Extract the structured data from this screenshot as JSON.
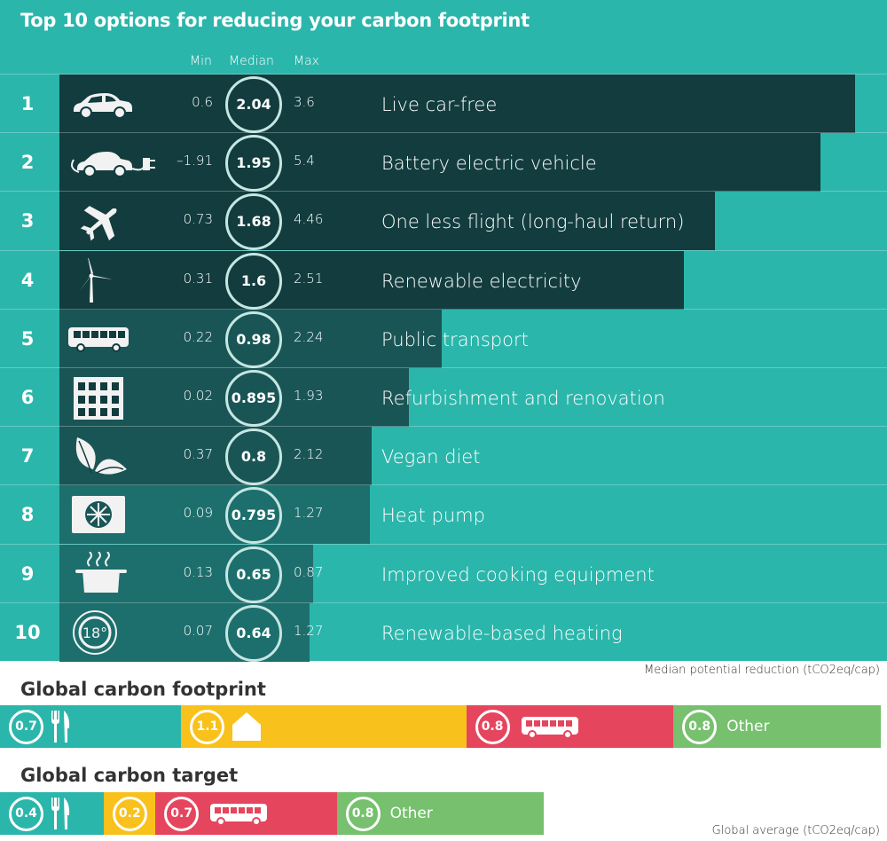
{
  "title": "Top 10 options for reducing your carbon footprint",
  "columns": {
    "min": "Min",
    "median": "Median",
    "max": "Max"
  },
  "colors": {
    "bg": "#2bb6ab",
    "bar_dark": "#123c3e",
    "bar_mid": "#1a5556",
    "bar_light": "#1d6f6d",
    "food": "#2bb6ab",
    "housing": "#f9c11c",
    "transport": "#e5465e",
    "other": "#76c06e"
  },
  "chart_data": {
    "type": "bar",
    "title": "Top 10 options for reducing your carbon footprint",
    "xlabel": "Median potential reduction (tCO2eq/cap)",
    "xlim": [
      0,
      2.06
    ],
    "categories": [
      "Live car-free",
      "Battery electric vehicle",
      "One less flight (long-haul return)",
      "Renewable electricity",
      "Public transport",
      "Refurbishment and renovation",
      "Vegan diet",
      "Heat pump",
      "Improved cooking equipment",
      "Renewable-based heating"
    ],
    "ranks": [
      "1",
      "2",
      "3",
      "4",
      "5",
      "6",
      "7",
      "8",
      "9",
      "10"
    ],
    "icons": [
      "car-icon",
      "electric-car-icon",
      "airplane-icon",
      "wind-turbine-icon",
      "bus-icon",
      "building-icon",
      "leaf-icon",
      "heat-pump-icon",
      "cooking-pot-icon",
      "thermostat-icon"
    ],
    "min": [
      "0.6",
      "–1.91",
      "0.73",
      "0.31",
      "0.22",
      "0.02",
      "0.37",
      "0.09",
      "0.13",
      "0.07"
    ],
    "median": [
      "2.04",
      "1.95",
      "1.68",
      "1.6",
      "0.98",
      "0.895",
      "0.8",
      "0.795",
      "0.65",
      "0.64"
    ],
    "max": [
      "3.6",
      "5.4",
      "4.46",
      "2.51",
      "2.24",
      "1.93",
      "2.12",
      "1.27",
      "0.87",
      "1.27"
    ],
    "values": [
      2.04,
      1.95,
      1.68,
      1.6,
      0.98,
      0.895,
      0.8,
      0.795,
      0.65,
      0.64
    ]
  },
  "footprint": {
    "title": "Global carbon footprint",
    "segments": [
      {
        "value": 0.7,
        "label": "0.7",
        "category": "food",
        "icon": "cutlery-icon",
        "text": ""
      },
      {
        "value": 1.1,
        "label": "1.1",
        "category": "housing",
        "icon": "house-icon",
        "text": ""
      },
      {
        "value": 0.8,
        "label": "0.8",
        "category": "transport",
        "icon": "bus-icon",
        "text": ""
      },
      {
        "value": 0.8,
        "label": "0.8",
        "category": "other",
        "icon": "",
        "text": "Other"
      }
    ]
  },
  "target": {
    "title": "Global carbon target",
    "segments": [
      {
        "value": 0.4,
        "label": "0.4",
        "category": "food",
        "icon": "cutlery-icon",
        "text": ""
      },
      {
        "value": 0.2,
        "label": "0.2",
        "category": "housing",
        "icon": "",
        "text": ""
      },
      {
        "value": 0.7,
        "label": "0.7",
        "category": "transport",
        "icon": "bus-icon",
        "text": ""
      },
      {
        "value": 0.8,
        "label": "0.8",
        "category": "other",
        "icon": "",
        "text": "Other"
      }
    ]
  },
  "notes": {
    "median_axis": "Median potential reduction (tCO2eq/cap)",
    "global_avg": "Global average (tCO2eq/cap)"
  }
}
